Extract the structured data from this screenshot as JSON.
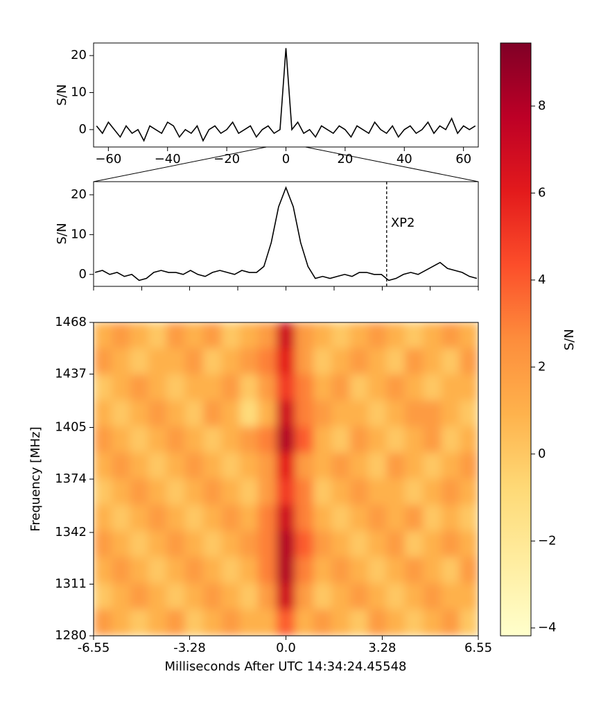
{
  "chart_data": [
    {
      "type": "line",
      "ylabel": "S/N",
      "color": "#000000",
      "x": [
        -64,
        -62,
        -60,
        -58,
        -56,
        -54,
        -52,
        -50,
        -48,
        -46,
        -44,
        -42,
        -40,
        -38,
        -36,
        -34,
        -32,
        -30,
        -28,
        -26,
        -24,
        -22,
        -20,
        -18,
        -16,
        -14,
        -12,
        -10,
        -8,
        -6,
        -4,
        -2,
        0,
        2,
        4,
        6,
        8,
        10,
        12,
        14,
        16,
        18,
        20,
        22,
        24,
        26,
        28,
        30,
        32,
        34,
        36,
        38,
        40,
        42,
        44,
        46,
        48,
        50,
        52,
        54,
        56,
        58,
        60,
        62,
        64
      ],
      "values": [
        1,
        -1,
        2,
        0,
        -2,
        1,
        -1,
        0,
        -3,
        1,
        0,
        -1,
        2,
        1,
        -2,
        0,
        -1,
        1,
        -3,
        0,
        1,
        -1,
        0,
        2,
        -1,
        0,
        1,
        -2,
        0,
        1,
        -1,
        0,
        22,
        0,
        2,
        -1,
        0,
        -2,
        1,
        0,
        -1,
        1,
        0,
        -2,
        1,
        0,
        -1,
        2,
        0,
        -1,
        1,
        -2,
        0,
        1,
        -1,
        0,
        2,
        -1,
        1,
        0,
        3,
        -1,
        1,
        0,
        1
      ],
      "xlim": [
        -65,
        65
      ],
      "xticks": [
        {
          "value": -60,
          "label": "−60"
        },
        {
          "value": -40,
          "label": "−40"
        },
        {
          "value": -20,
          "label": "−20"
        },
        0,
        20,
        40,
        60
      ],
      "ylim": [
        -4.7,
        23.4
      ],
      "yticks": [
        0,
        10,
        20
      ]
    },
    {
      "type": "line",
      "ylabel": "S/N",
      "color": "#000000",
      "x": [
        -6.5,
        -6.25,
        -6,
        -5.75,
        -5.5,
        -5.25,
        -5,
        -4.75,
        -4.5,
        -4.25,
        -4,
        -3.75,
        -3.5,
        -3.25,
        -3,
        -2.75,
        -2.5,
        -2.25,
        -2,
        -1.75,
        -1.5,
        -1.25,
        -1,
        -0.75,
        -0.5,
        -0.25,
        0,
        0.25,
        0.5,
        0.75,
        1,
        1.25,
        1.5,
        1.75,
        2,
        2.25,
        2.5,
        2.75,
        3,
        3.25,
        3.5,
        3.75,
        4,
        4.25,
        4.5,
        4.75,
        5,
        5.25,
        5.5,
        5.75,
        6,
        6.25,
        6.5
      ],
      "values": [
        0.5,
        1,
        0,
        0.5,
        -0.5,
        0,
        -1.5,
        -1,
        0.5,
        1,
        0.5,
        0.5,
        0,
        1,
        0,
        -0.5,
        0.5,
        1,
        0.5,
        0,
        1,
        0.5,
        0.5,
        2,
        8,
        17,
        21.8,
        17,
        8,
        2,
        -1,
        -0.5,
        -1,
        -0.5,
        0,
        -0.5,
        0.5,
        0.5,
        0,
        0,
        -1.5,
        -1,
        0,
        0.5,
        0,
        1,
        2,
        3,
        1.5,
        1,
        0.5,
        -0.5,
        -1
      ],
      "xlim": [
        -6.55,
        6.55
      ],
      "xticks": [
        -6.55,
        -4.91,
        -3.28,
        -1.64,
        0,
        1.64,
        3.28,
        4.91,
        6.55
      ],
      "xtick_labels": false,
      "ylim": [
        -3,
        23.3
      ],
      "yticks": [
        0,
        10,
        20
      ],
      "annotations": [
        {
          "text": "XP2",
          "x": 3.43
        }
      ]
    },
    {
      "type": "heatmap",
      "xlabel": "Milliseconds After UTC 14:34:24.45548",
      "ylabel": "Frequency [MHz]",
      "xlim": [
        -6.55,
        6.55
      ],
      "xticks": [
        -6.55,
        -3.28,
        {
          "value": 0,
          "label": "0.0"
        },
        3.28,
        6.55
      ],
      "ylim": [
        1280,
        1468
      ],
      "yticks": [
        1280,
        1311,
        1342,
        1374,
        1405,
        1437,
        1468
      ],
      "values": [
        [
          1,
          2,
          1,
          0,
          2,
          1,
          2,
          0,
          1,
          2,
          7,
          2,
          1,
          0,
          1,
          2,
          1,
          0,
          1,
          2,
          1
        ],
        [
          2,
          1,
          0,
          1,
          1,
          2,
          0,
          1,
          2,
          3,
          6,
          2,
          0,
          1,
          2,
          1,
          0,
          2,
          1,
          0,
          2
        ],
        [
          0,
          1,
          2,
          1,
          0,
          1,
          1,
          2,
          0,
          2,
          5,
          3,
          1,
          2,
          0,
          1,
          2,
          1,
          0,
          1,
          1
        ],
        [
          1,
          0,
          1,
          2,
          1,
          0,
          2,
          1,
          -1,
          1,
          7,
          3,
          2,
          1,
          1,
          0,
          1,
          2,
          2,
          1,
          0
        ],
        [
          2,
          1,
          0,
          1,
          2,
          1,
          0,
          1,
          2,
          3,
          8,
          4,
          1,
          0,
          2,
          1,
          0,
          1,
          2,
          0,
          1
        ],
        [
          1,
          2,
          1,
          0,
          1,
          2,
          1,
          0,
          1,
          2,
          6,
          2,
          1,
          2,
          1,
          0,
          2,
          1,
          0,
          1,
          2
        ],
        [
          0,
          1,
          2,
          1,
          0,
          1,
          2,
          1,
          0,
          2,
          5,
          3,
          0,
          1,
          2,
          1,
          1,
          0,
          1,
          2,
          1
        ],
        [
          1,
          0,
          1,
          2,
          1,
          0,
          1,
          2,
          1,
          3,
          7,
          3,
          1,
          0,
          1,
          2,
          1,
          2,
          0,
          1,
          0
        ],
        [
          2,
          1,
          0,
          1,
          2,
          1,
          0,
          1,
          2,
          3,
          8,
          4,
          2,
          1,
          0,
          1,
          2,
          0,
          1,
          2,
          1
        ],
        [
          1,
          2,
          1,
          0,
          1,
          2,
          1,
          0,
          1,
          3,
          8,
          3,
          1,
          2,
          1,
          0,
          1,
          2,
          1,
          0,
          2
        ],
        [
          0,
          1,
          2,
          1,
          0,
          1,
          2,
          1,
          0,
          2,
          7,
          2,
          0,
          1,
          2,
          1,
          0,
          1,
          2,
          1,
          1
        ],
        [
          2,
          1,
          0,
          1,
          2,
          0,
          1,
          2,
          1,
          1,
          4,
          1,
          2,
          1,
          0,
          2,
          1,
          0,
          1,
          2,
          0
        ]
      ],
      "colorbar": {
        "label": "S/N",
        "lim": [
          -4.18,
          9.45
        ],
        "ticks": [
          {
            "value": -4,
            "label": "−4"
          },
          {
            "value": -2,
            "label": "−2"
          },
          0,
          2,
          4,
          6,
          8
        ],
        "colors": [
          "#ffffcc",
          "#ffeda0",
          "#fed976",
          "#feb24c",
          "#fd8d3c",
          "#fc4e2a",
          "#e31a1c",
          "#bd0026",
          "#800026"
        ]
      }
    }
  ]
}
